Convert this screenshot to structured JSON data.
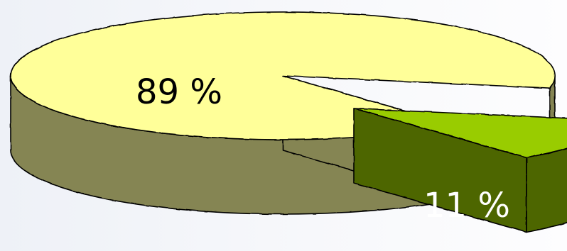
{
  "chart_data": {
    "type": "pie",
    "style": "3d-exploded",
    "slices": [
      {
        "label": "89 %",
        "value": 89,
        "color": "#ffff99",
        "side_color": "#858552",
        "text_color": "#000000",
        "exploded": false
      },
      {
        "label": "11 %",
        "value": 11,
        "color": "#99cc00",
        "side_color": "#4d6600",
        "text_color": "#ffffff",
        "exploded": true
      }
    ],
    "legend": "none",
    "grid": false
  }
}
